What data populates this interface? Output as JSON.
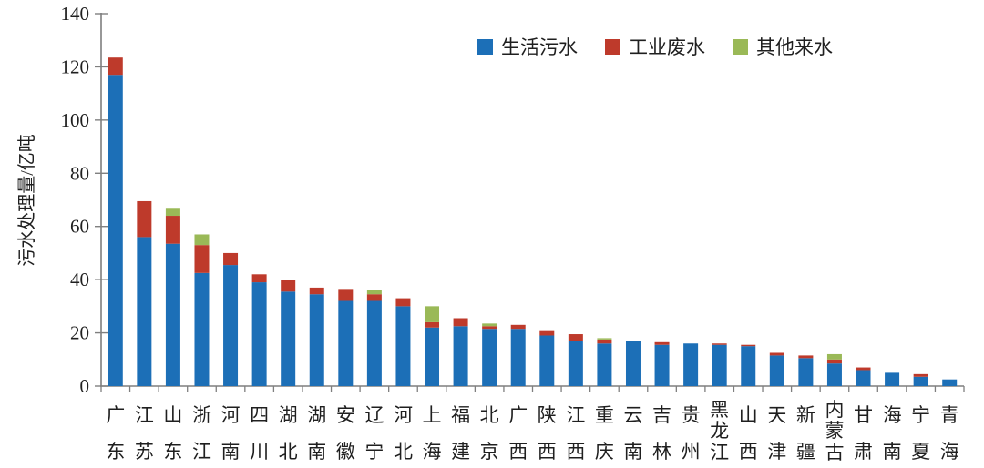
{
  "chart_data": {
    "type": "bar",
    "stacked": true,
    "title": "",
    "xlabel": "",
    "ylabel": "污水处理量/亿吨",
    "ylim": [
      0,
      140
    ],
    "yticks": [
      0,
      20,
      40,
      60,
      80,
      100,
      120,
      140
    ],
    "grid": false,
    "legend_position": "top-center",
    "categories": [
      "广东",
      "江苏",
      "山东",
      "浙江",
      "河南",
      "四川",
      "湖北",
      "湖南",
      "安徽",
      "辽宁",
      "河北",
      "上海",
      "福建",
      "北京",
      "广西",
      "陕西",
      "江西",
      "重庆",
      "云南",
      "吉林",
      "贵州",
      "黑龙江",
      "山西",
      "天津",
      "新疆",
      "内蒙古",
      "甘肃",
      "海南",
      "宁夏",
      "青海"
    ],
    "series": [
      {
        "name": "生活污水",
        "color": "#1c6fb7",
        "values": [
          117,
          56,
          53.5,
          42.5,
          45.5,
          39,
          35.5,
          34.5,
          32,
          32,
          30,
          22,
          22.5,
          21.5,
          21.5,
          19,
          17,
          16,
          17,
          15.5,
          16,
          15.5,
          15,
          11.5,
          10.5,
          8.5,
          6,
          5,
          3.5,
          2.5
        ]
      },
      {
        "name": "工业废水",
        "color": "#be3a2b",
        "values": [
          6.5,
          13.5,
          10.5,
          10.5,
          4.5,
          3,
          4.5,
          2.5,
          4.5,
          2.5,
          3,
          2,
          3,
          1,
          1.5,
          2,
          2.5,
          1.5,
          0,
          1,
          0,
          0.5,
          0.5,
          1,
          1,
          1.5,
          1,
          0,
          1,
          0
        ]
      },
      {
        "name": "其他来水",
        "color": "#9ab957",
        "values": [
          0,
          0,
          3,
          4,
          0,
          0,
          0,
          0,
          0,
          1.5,
          0,
          6,
          0,
          1,
          0,
          0,
          0,
          0.5,
          0,
          0,
          0,
          0,
          0,
          0,
          0,
          2,
          0,
          0,
          0,
          0
        ]
      }
    ],
    "totals": [
      123.5,
      69.5,
      67,
      57,
      50,
      42,
      40,
      37,
      36.5,
      36,
      33,
      30,
      25.5,
      23.5,
      23,
      21,
      19.5,
      18,
      17,
      16.5,
      16,
      16,
      15.5,
      12.5,
      11.5,
      12,
      7,
      5,
      4.5,
      2.5
    ]
  },
  "colors": {
    "axis": "#7f7f7f",
    "text": "#1f1f1f",
    "background": "#ffffff"
  }
}
